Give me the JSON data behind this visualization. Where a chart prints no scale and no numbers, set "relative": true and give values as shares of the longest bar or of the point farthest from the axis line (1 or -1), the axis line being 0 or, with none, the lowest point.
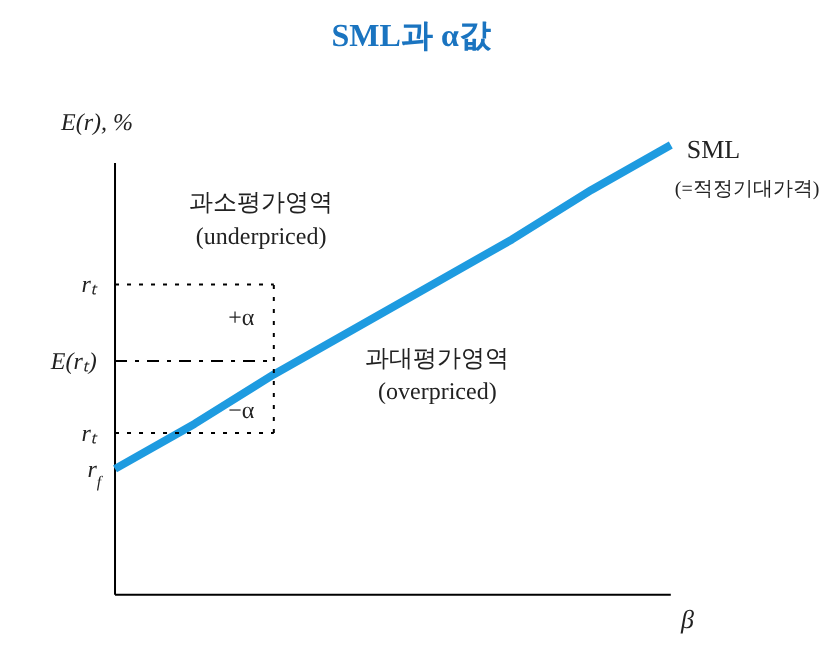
{
  "chart_data": {
    "type": "line",
    "title": "SML과 α값",
    "ylabel": "E(r), %",
    "xlabel": "β",
    "relative": true,
    "grid": false,
    "marker": "none",
    "categories": [
      null,
      null,
      null,
      null,
      null,
      null,
      null,
      null
    ],
    "series": [
      {
        "name": "SML",
        "color": "#1e9be0",
        "line_style": "solid",
        "values": [
          0.28,
          0.38,
          0.49,
          0.59,
          0.69,
          0.79,
          0.9,
          1.0
        ]
      },
      {
        "color": "#000000",
        "line_style": "dotted",
        "values": [
          0.69,
          0.69,
          0.69,
          null,
          null,
          null,
          null,
          null
        ]
      },
      {
        "color": "#000000",
        "line_style": "dashed",
        "values": [
          0.52,
          0.52,
          0.52,
          null,
          null,
          null,
          null,
          null
        ]
      },
      {
        "color": "#000000",
        "line_style": "dotted",
        "values": [
          0.36,
          0.36,
          0.36,
          null,
          null,
          null,
          null,
          null
        ]
      }
    ],
    "annotations": [
      "rₜ",
      "E(rₜ)",
      "rₜ",
      "r$_{f}$",
      "과소평가영역\n(underpriced)",
      "과대평가영역\n(overpriced)",
      "(=적정기대가격)",
      "+α",
      "−α"
    ]
  }
}
